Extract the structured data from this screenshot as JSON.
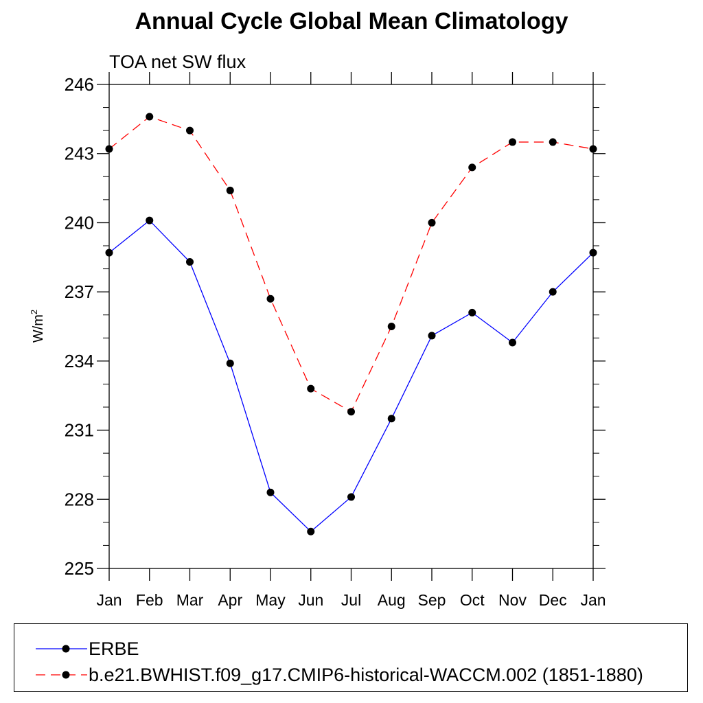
{
  "chart_data": {
    "type": "line",
    "title": "Annual Cycle Global Mean Climatology",
    "subtitle": "TOA net SW flux",
    "ylabel": "W/m",
    "ylabel_sup": "2",
    "ylim": [
      225,
      246
    ],
    "yticks": [
      225,
      228,
      231,
      234,
      237,
      240,
      243,
      246
    ],
    "categories": [
      "Jan",
      "Feb",
      "Mar",
      "Apr",
      "May",
      "Jun",
      "Jul",
      "Aug",
      "Sep",
      "Oct",
      "Nov",
      "Dec",
      "Jan"
    ],
    "series": [
      {
        "name": "ERBE",
        "color": "#0000ff",
        "dash": "solid",
        "values": [
          238.7,
          240.1,
          238.3,
          233.9,
          228.3,
          226.6,
          228.1,
          231.5,
          235.1,
          236.1,
          234.8,
          237.0,
          238.7
        ]
      },
      {
        "name": "b.e21.BWHIST.f09_g17.CMIP6-historical-WACCM.002 (1851-1880)",
        "color": "#ff0000",
        "dash": "dashed",
        "values": [
          243.2,
          244.6,
          244.0,
          241.4,
          236.7,
          232.8,
          231.8,
          235.5,
          240.0,
          242.4,
          243.5,
          243.5,
          243.2
        ]
      }
    ],
    "grid": false,
    "legend_position": "bottom"
  }
}
